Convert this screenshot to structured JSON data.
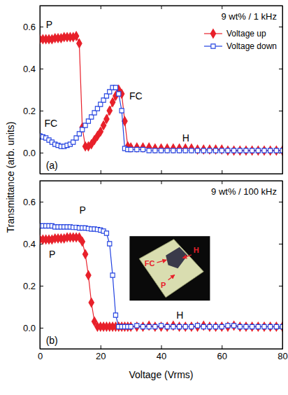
{
  "chart_data": [
    {
      "type": "line",
      "title": "9 wt% / 1 kHz",
      "ylabel": "Transmittance (arb. units)",
      "x": [
        0,
        1,
        2,
        3,
        4,
        5,
        6,
        7,
        8,
        9,
        10,
        11,
        12,
        13,
        14,
        15,
        16,
        17,
        18,
        19,
        20,
        21,
        22,
        23,
        24,
        25,
        26,
        27,
        28,
        29,
        30,
        32,
        34,
        36,
        38,
        40,
        42,
        44,
        46,
        48,
        50,
        52,
        54,
        56,
        58,
        60,
        62,
        64,
        66,
        68,
        70,
        72,
        74,
        76,
        78,
        80
      ],
      "series": [
        {
          "name": "Voltage up",
          "color": "#e8202a",
          "marker": "diamond",
          "values": [
            0.54,
            0.54,
            0.54,
            0.54,
            0.54,
            0.545,
            0.545,
            0.545,
            0.55,
            0.55,
            0.55,
            0.55,
            0.555,
            0.52,
            0.12,
            0.03,
            0.03,
            0.04,
            0.06,
            0.08,
            0.1,
            0.13,
            0.16,
            0.2,
            0.24,
            0.27,
            0.3,
            0.28,
            0.15,
            0.03,
            0.025,
            0.025,
            0.025,
            0.025,
            0.02,
            0.02,
            0.02,
            0.02,
            0.02,
            0.02,
            0.02,
            0.015,
            0.015,
            0.015,
            0.015,
            0.015,
            0.01,
            0.01,
            0.01,
            0.01,
            0.01,
            0.01,
            0.01,
            0.01,
            0.01,
            0.01
          ]
        },
        {
          "name": "Voltage down",
          "color": "#2040e0",
          "marker": "open-square",
          "values": [
            0.08,
            0.075,
            0.07,
            0.06,
            0.05,
            0.04,
            0.035,
            0.03,
            0.03,
            0.035,
            0.04,
            0.05,
            0.07,
            0.09,
            0.11,
            0.13,
            0.15,
            0.17,
            0.19,
            0.21,
            0.23,
            0.25,
            0.27,
            0.29,
            0.31,
            0.31,
            0.28,
            0.2,
            0.02,
            0.015,
            0.015,
            0.015,
            0.015,
            0.01,
            0.01,
            0.01,
            0.01,
            0.01,
            0.01,
            0.01,
            0.01,
            0.01,
            0.01,
            0.01,
            0.01,
            0.01,
            0.01,
            0.01,
            0.01,
            0.01,
            0.01,
            0.01,
            0.01,
            0.01,
            0.01,
            0.01
          ]
        }
      ],
      "xlim": [
        0,
        80
      ],
      "xticks": [
        0,
        20,
        40,
        60,
        80
      ],
      "ylim": [
        -0.1,
        0.7
      ],
      "yticks": [
        {
          "value": 0,
          "label": "0.0"
        },
        0.2,
        0.4,
        0.6
      ],
      "tick_labels": "y",
      "legend": "upper right",
      "annotations": [
        {
          "text": "P",
          "x": 2,
          "y": 0.61
        },
        {
          "text": "FC",
          "x": 1.5,
          "y": 0.14
        },
        {
          "text": "FC",
          "x": 29.5,
          "y": 0.27
        },
        {
          "text": "H",
          "x": 47,
          "y": 0.07
        },
        {
          "text": "(a)",
          "x": 2,
          "y": -0.06
        }
      ]
    },
    {
      "type": "line",
      "title": "9 wt% / 100 kHz",
      "xlabel": "Voltage (Vrms)",
      "x": [
        0,
        1,
        2,
        3,
        4,
        5,
        6,
        7,
        8,
        9,
        10,
        11,
        12,
        13,
        14,
        15,
        16,
        17,
        18,
        19,
        20,
        21,
        22,
        23,
        24,
        25,
        26,
        27,
        28,
        29,
        30,
        32,
        34,
        36,
        38,
        40,
        42,
        44,
        46,
        48,
        50,
        52,
        54,
        56,
        58,
        60,
        62,
        64,
        66,
        68,
        70,
        72,
        74,
        76,
        78,
        80
      ],
      "series": [
        {
          "color": "#e8202a",
          "marker": "diamond",
          "values": [
            0.42,
            0.42,
            0.42,
            0.42,
            0.42,
            0.425,
            0.425,
            0.425,
            0.425,
            0.43,
            0.43,
            0.43,
            0.43,
            0.43,
            0.41,
            0.35,
            0.25,
            0.12,
            0.03,
            0.005,
            0.005,
            0.005,
            0.005,
            0.005,
            0.005,
            0.005,
            0.005,
            0.005,
            0.005,
            0.005,
            0.005,
            0.005,
            0.005,
            0.01,
            0.005,
            0.005,
            0.005,
            0.01,
            0.005,
            0.005,
            0.005,
            0.005,
            0.01,
            0.005,
            0.005,
            0.005,
            0.005,
            0.01,
            0.005,
            0.005,
            0.005,
            0.005,
            0.005,
            0.005,
            0.005,
            0.005
          ]
        },
        {
          "color": "#2040e0",
          "marker": "open-square",
          "values": [
            0.485,
            0.485,
            0.485,
            0.485,
            0.485,
            0.48,
            0.48,
            0.48,
            0.48,
            0.48,
            0.48,
            0.478,
            0.478,
            0.475,
            0.475,
            0.475,
            0.472,
            0.47,
            0.47,
            0.468,
            0.465,
            0.46,
            0.45,
            0.4,
            0.25,
            0.06,
            0.005,
            0.005,
            0.005,
            0.005,
            0.005,
            0.01,
            0.005,
            0.005,
            0.005,
            0.01,
            0.005,
            0.005,
            0.005,
            0.005,
            0.005,
            0.01,
            0.005,
            0.005,
            0.005,
            0.005,
            0.01,
            0.01,
            0.005,
            0.005,
            0.005,
            0.005,
            0.005,
            0.005,
            0.005,
            0.005
          ]
        }
      ],
      "xlim": [
        0,
        80
      ],
      "xticks": [
        0,
        20,
        40,
        60,
        80
      ],
      "ylim": [
        -0.1,
        0.7
      ],
      "yticks": [
        {
          "value": 0,
          "label": "0.0"
        },
        0.2,
        0.4,
        0.6
      ],
      "annotations": [
        {
          "text": "P",
          "x": 13,
          "y": 0.56
        },
        {
          "text": "P",
          "x": 3,
          "y": 0.35
        },
        {
          "text": "H",
          "x": 45,
          "y": 0.06
        },
        {
          "text": "(b)",
          "x": 2,
          "y": -0.06
        }
      ],
      "inset_labels": [
        "FC",
        "H",
        "P"
      ]
    }
  ]
}
